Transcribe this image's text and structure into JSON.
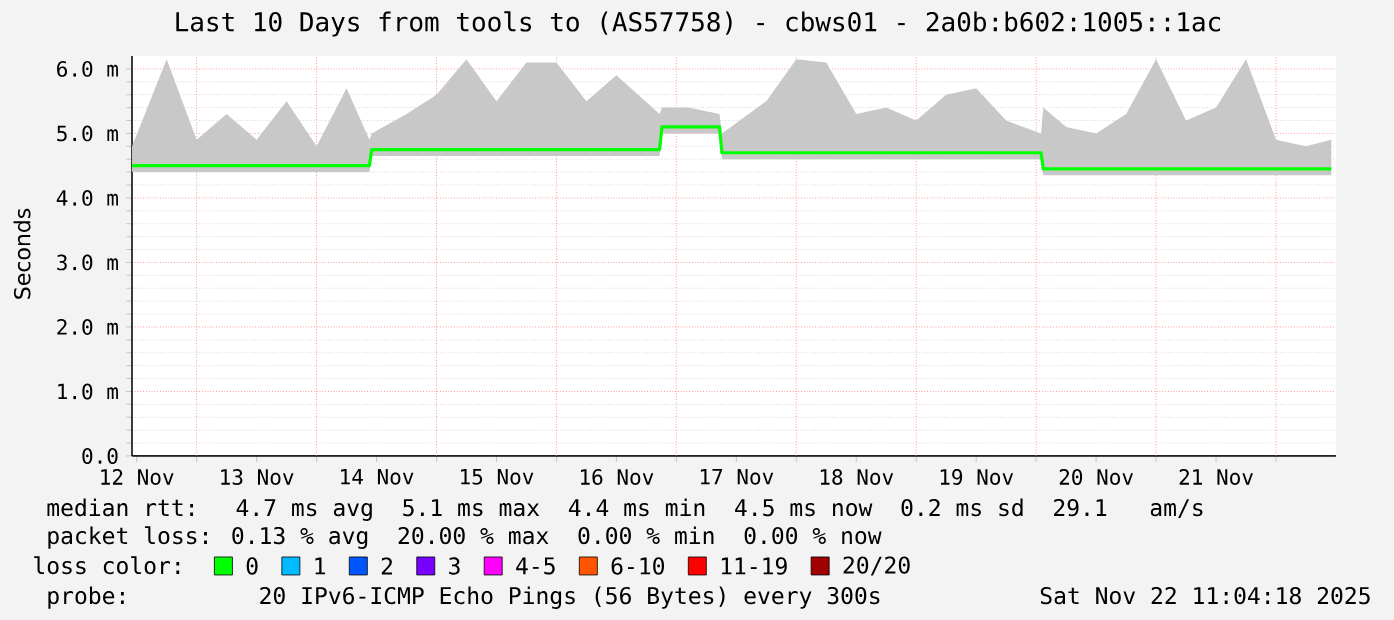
{
  "chart_data": {
    "type": "line",
    "title": "Last 10 Days from tools to (AS57758) - cbws01 - 2a0b:b602:1005::1ac",
    "ylabel": "Seconds",
    "xlim": [
      "2025-11-12T11:04",
      "2025-11-22T12:00"
    ],
    "ylim": [
      0,
      6.2
    ],
    "xticks": [
      {
        "value": "2025-11-12T12:00",
        "label": "12 Nov"
      },
      {
        "value": "2025-11-13",
        "label": null
      },
      {
        "value": "2025-11-13T12:00",
        "label": "13 Nov"
      },
      {
        "value": "2025-11-14",
        "label": null
      },
      {
        "value": "2025-11-14T12:00",
        "label": "14 Nov"
      },
      {
        "value": "2025-11-15",
        "label": null
      },
      {
        "value": "2025-11-15T12:00",
        "label": "15 Nov"
      },
      {
        "value": "2025-11-16",
        "label": null
      },
      {
        "value": "2025-11-16T12:00",
        "label": "16 Nov"
      },
      {
        "value": "2025-11-17",
        "label": null
      },
      {
        "value": "2025-11-17T12:00",
        "label": "17 Nov"
      },
      {
        "value": "2025-11-18",
        "label": null
      },
      {
        "value": "2025-11-18T12:00",
        "label": "18 Nov"
      },
      {
        "value": "2025-11-19",
        "label": null
      },
      {
        "value": "2025-11-19T12:00",
        "label": "19 Nov"
      },
      {
        "value": "2025-11-20",
        "label": null
      },
      {
        "value": "2025-11-20T12:00",
        "label": "20 Nov"
      },
      {
        "value": "2025-11-21",
        "label": null
      },
      {
        "value": "2025-11-21T12:00",
        "label": "21 Nov"
      },
      {
        "value": "2025-11-22",
        "label": null
      }
    ],
    "yticks": [
      {
        "value": 0,
        "label": "0.0"
      },
      {
        "value": 1,
        "label": "1.0 m"
      },
      {
        "value": 2,
        "label": "2.0 m"
      },
      {
        "value": 3,
        "label": "3.0 m"
      },
      {
        "value": 4,
        "label": "4.0 m"
      },
      {
        "value": 5,
        "label": "5.0 m"
      },
      {
        "value": 6,
        "label": "6.0 m"
      }
    ],
    "grid": true,
    "legend": "bottom",
    "legend_title": "loss color:",
    "marker": "none",
    "line_style": "solid",
    "series": [
      {
        "name": "0",
        "color": "#00ff00",
        "x": [
          "2025-11-12T11:04",
          "2025-11-12T18:00",
          "2025-11-13T00:00",
          "2025-11-13T06:00",
          "2025-11-13T12:00",
          "2025-11-13T18:00",
          "2025-11-14T00:00",
          "2025-11-14T06:00",
          "2025-11-14T10:34",
          "2025-11-14T11:02",
          "2025-11-14T18:00",
          "2025-11-15T00:00",
          "2025-11-15T06:00",
          "2025-11-15T12:00",
          "2025-11-15T18:00",
          "2025-11-16T00:00",
          "2025-11-16T06:00",
          "2025-11-16T12:00",
          "2025-11-16T20:38",
          "2025-11-16T21:07",
          "2025-11-17T02:24",
          "2025-11-17T08:38",
          "2025-11-17T09:07",
          "2025-11-17T18:00",
          "2025-11-18T00:00",
          "2025-11-18T06:00",
          "2025-11-18T12:00",
          "2025-11-18T18:00",
          "2025-11-19T00:00",
          "2025-11-19T06:00",
          "2025-11-19T12:00",
          "2025-11-19T18:00",
          "2025-11-20T00:58",
          "2025-11-20T01:26",
          "2025-11-20T06:00",
          "2025-11-20T12:00",
          "2025-11-20T18:00",
          "2025-11-21T00:00",
          "2025-11-21T06:00",
          "2025-11-21T12:00",
          "2025-11-21T18:00",
          "2025-11-22T00:00",
          "2025-11-22T06:00",
          "2025-11-22T11:04"
        ],
        "values": [
          4.5,
          4.5,
          4.5,
          4.5,
          4.5,
          4.5,
          4.5,
          4.5,
          4.5,
          4.75,
          4.75,
          4.75,
          4.75,
          4.75,
          4.75,
          4.75,
          4.75,
          4.75,
          4.75,
          5.1,
          5.1,
          5.1,
          4.7,
          4.7,
          4.7,
          4.7,
          4.7,
          4.7,
          4.7,
          4.7,
          4.7,
          4.7,
          4.7,
          4.45,
          4.45,
          4.45,
          4.45,
          4.45,
          4.45,
          4.45,
          4.45,
          4.45,
          4.45,
          4.45
        ],
        "lower": [
          4.4,
          4.4,
          4.4,
          4.4,
          4.4,
          4.4,
          4.4,
          4.4,
          4.4,
          4.65,
          4.65,
          4.65,
          4.65,
          4.65,
          4.65,
          4.65,
          4.65,
          4.65,
          4.65,
          5.0,
          5.0,
          5.0,
          4.6,
          4.6,
          4.6,
          4.6,
          4.6,
          4.6,
          4.6,
          4.6,
          4.6,
          4.6,
          4.6,
          4.35,
          4.35,
          4.35,
          4.35,
          4.35,
          4.35,
          4.35,
          4.35,
          4.35,
          4.35,
          4.35
        ],
        "upper": [
          4.8,
          6.15,
          4.9,
          5.3,
          4.9,
          5.5,
          4.8,
          5.7,
          4.9,
          5.0,
          5.3,
          5.6,
          6.15,
          5.5,
          6.1,
          6.1,
          5.5,
          5.9,
          5.3,
          5.4,
          5.4,
          5.3,
          5.0,
          5.5,
          6.15,
          6.1,
          5.3,
          5.4,
          5.2,
          5.6,
          5.7,
          5.2,
          5.0,
          5.4,
          5.1,
          5.0,
          5.3,
          6.15,
          5.2,
          5.4,
          6.15,
          4.9,
          4.8,
          4.9
        ]
      },
      {
        "name": "1",
        "color": "#00bbff"
      },
      {
        "name": "2",
        "color": "#0055ff"
      },
      {
        "name": "3",
        "color": "#7700ff"
      },
      {
        "name": "4-5",
        "color": "#ff00ff"
      },
      {
        "name": "6-10",
        "color": "#ff5500"
      },
      {
        "name": "11-19",
        "color": "#ff0000"
      },
      {
        "name": "20/20",
        "color": "#a10000"
      }
    ],
    "annotations": [
      "median rtt:  4.7 ms avg  5.1 ms max  4.4 ms min  4.5 ms now  0.2 ms sd  29.1   am/s",
      "packet loss: 0.13 % avg  20.00 % max  0.00 % min  0.00 % now",
      "probe:       20 IPv6-ICMP Echo Pings (56 Bytes) every 300s",
      "Sat Nov 22 11:04:18 2025"
    ]
  }
}
